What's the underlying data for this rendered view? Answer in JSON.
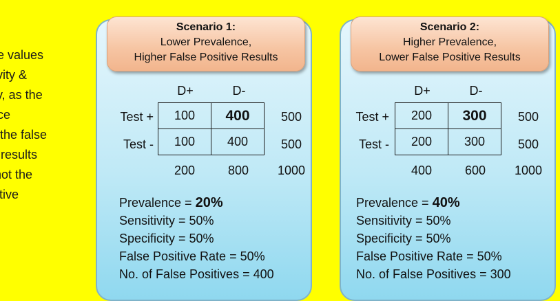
{
  "side_text": [
    "he values",
    "tivity &",
    "ity, as the",
    "nce",
    "s the false",
    "e results",
    "(not the",
    "sitive"
  ],
  "scenarios": [
    {
      "title": "Scenario 1:",
      "subtitle1": "Lower Prevalence,",
      "subtitle2": "Higher False Positive Results",
      "col_heads": [
        "D+",
        "D-"
      ],
      "row_labels": [
        "Test +",
        "Test -"
      ],
      "cells": [
        [
          "100",
          "400"
        ],
        [
          "100",
          "400"
        ]
      ],
      "row_totals": [
        "500",
        "500"
      ],
      "col_totals": [
        "200",
        "800"
      ],
      "grand_total": "1000",
      "prevalence_label": "Prevalence = ",
      "prevalence_value": "20%",
      "sensitivity": "Sensitivity = 50%",
      "specificity": "Specificity = 50%",
      "fpr": "False Positive Rate = 50%",
      "n_fp": "No. of False Positives = 400"
    },
    {
      "title": "Scenario 2:",
      "subtitle1": "Higher Prevalence,",
      "subtitle2": "Lower False Positive Results",
      "col_heads": [
        "D+",
        "D-"
      ],
      "row_labels": [
        "Test +",
        "Test -"
      ],
      "cells": [
        [
          "200",
          "300"
        ],
        [
          "200",
          "300"
        ]
      ],
      "row_totals": [
        "500",
        "500"
      ],
      "col_totals": [
        "400",
        "600"
      ],
      "grand_total": "1000",
      "prevalence_label": "Prevalence = ",
      "prevalence_value": "40%",
      "sensitivity": "Sensitivity = 50%",
      "specificity": "Specificity = 50%",
      "fpr": "False Positive Rate = 50%",
      "n_fp": "No. of False Positives = 300"
    }
  ],
  "colors": {
    "background": "#ffff00",
    "panel": "#bfe9f6",
    "header": "#f6c4a2"
  }
}
